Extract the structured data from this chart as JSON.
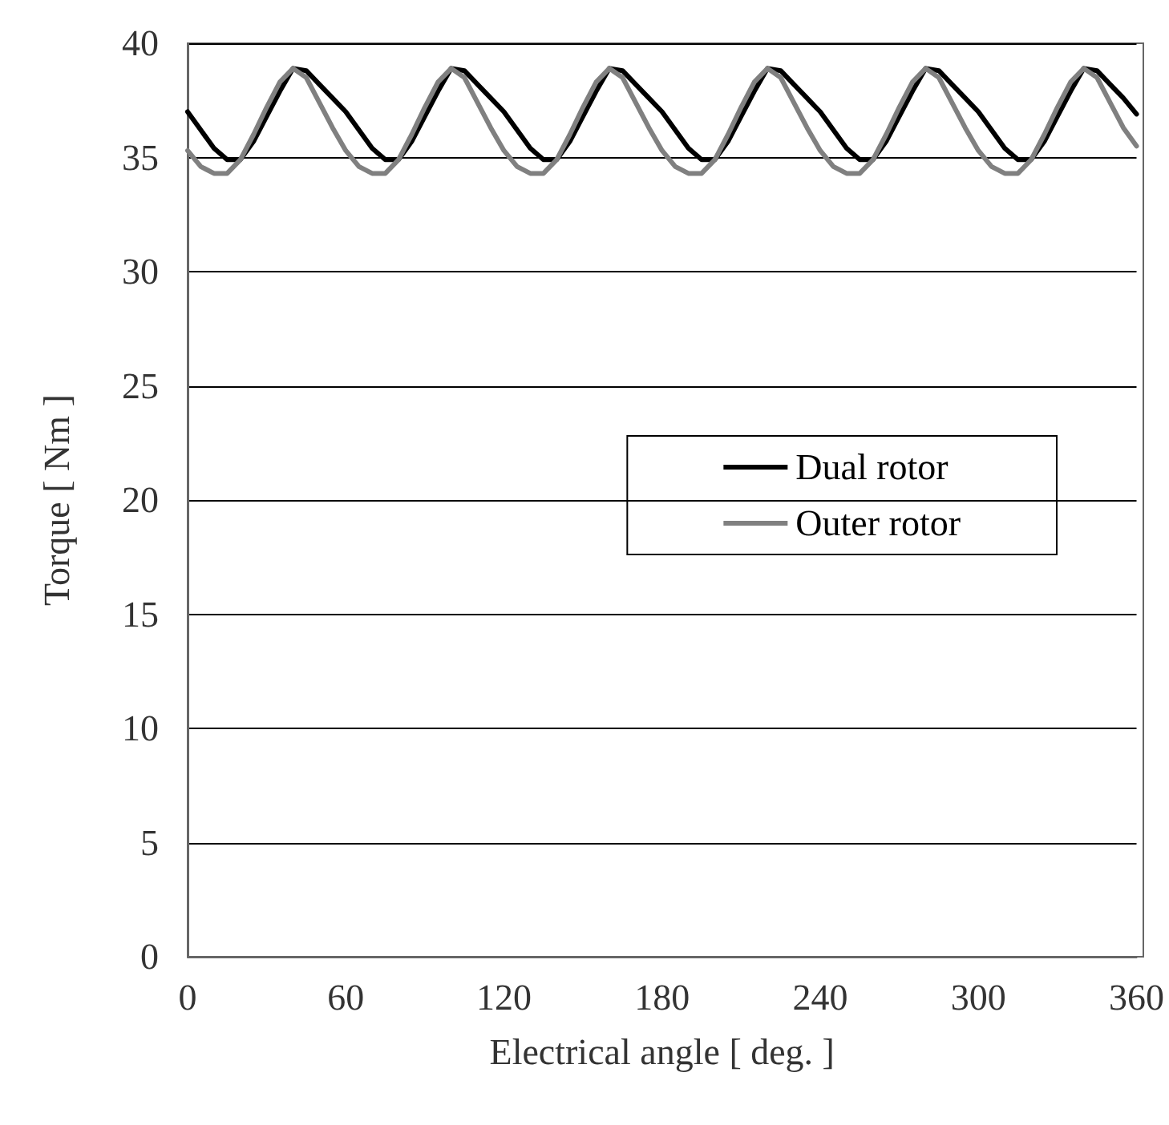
{
  "chart_data": {
    "type": "line",
    "xlabel": "Electrical angle [ deg. ]",
    "ylabel": "Torque [ Nm ]",
    "x": [
      0,
      5,
      10,
      15,
      20,
      25,
      30,
      35,
      40,
      45,
      50,
      55,
      60,
      65,
      70,
      75,
      80,
      85,
      90,
      95,
      100,
      105,
      110,
      115,
      120,
      125,
      130,
      135,
      140,
      145,
      150,
      155,
      160,
      165,
      170,
      175,
      180,
      185,
      190,
      195,
      200,
      205,
      210,
      215,
      220,
      225,
      230,
      235,
      240,
      245,
      250,
      255,
      260,
      265,
      270,
      275,
      280,
      285,
      290,
      295,
      300,
      305,
      310,
      315,
      320,
      325,
      330,
      335,
      340,
      345,
      350,
      355,
      360
    ],
    "series": [
      {
        "name": "Dual rotor",
        "color": "#000000",
        "values": [
          37.0,
          36.2,
          35.4,
          34.9,
          34.9,
          35.7,
          36.8,
          37.9,
          38.9,
          38.8,
          38.2,
          37.6,
          37.0,
          36.2,
          35.4,
          34.9,
          34.9,
          35.7,
          36.8,
          37.9,
          38.9,
          38.8,
          38.2,
          37.6,
          37.0,
          36.2,
          35.4,
          34.9,
          34.9,
          35.7,
          36.8,
          37.9,
          38.9,
          38.8,
          38.2,
          37.6,
          37.0,
          36.2,
          35.4,
          34.9,
          34.9,
          35.7,
          36.8,
          37.9,
          38.9,
          38.8,
          38.2,
          37.6,
          37.0,
          36.2,
          35.4,
          34.9,
          34.9,
          35.7,
          36.8,
          37.9,
          38.9,
          38.8,
          38.2,
          37.6,
          37.0,
          36.2,
          35.4,
          34.9,
          34.9,
          35.7,
          36.8,
          37.9,
          38.9,
          38.8,
          38.2,
          37.6,
          36.9
        ]
      },
      {
        "name": "Outer rotor",
        "color": "#808080",
        "values": [
          35.3,
          34.6,
          34.3,
          34.3,
          34.9,
          36.0,
          37.2,
          38.3,
          38.9,
          38.5,
          37.4,
          36.3,
          35.3,
          34.6,
          34.3,
          34.3,
          34.9,
          36.0,
          37.2,
          38.3,
          38.9,
          38.5,
          37.4,
          36.3,
          35.3,
          34.6,
          34.3,
          34.3,
          34.9,
          36.0,
          37.2,
          38.3,
          38.9,
          38.5,
          37.4,
          36.3,
          35.3,
          34.6,
          34.3,
          34.3,
          34.9,
          36.0,
          37.2,
          38.3,
          38.9,
          38.5,
          37.4,
          36.3,
          35.3,
          34.6,
          34.3,
          34.3,
          34.9,
          36.0,
          37.2,
          38.3,
          38.9,
          38.5,
          37.4,
          36.3,
          35.3,
          34.6,
          34.3,
          34.3,
          34.9,
          36.0,
          37.2,
          38.3,
          38.9,
          38.5,
          37.4,
          36.3,
          35.5
        ]
      }
    ],
    "xlim": [
      0,
      360
    ],
    "xticks": [
      0,
      60,
      120,
      180,
      240,
      300,
      360
    ],
    "ylim": [
      0,
      40
    ],
    "yticks": [
      0,
      5,
      10,
      15,
      20,
      25,
      30,
      35,
      40
    ],
    "grid": "y",
    "legend": "right",
    "marker": "none",
    "line_style": "solid"
  }
}
